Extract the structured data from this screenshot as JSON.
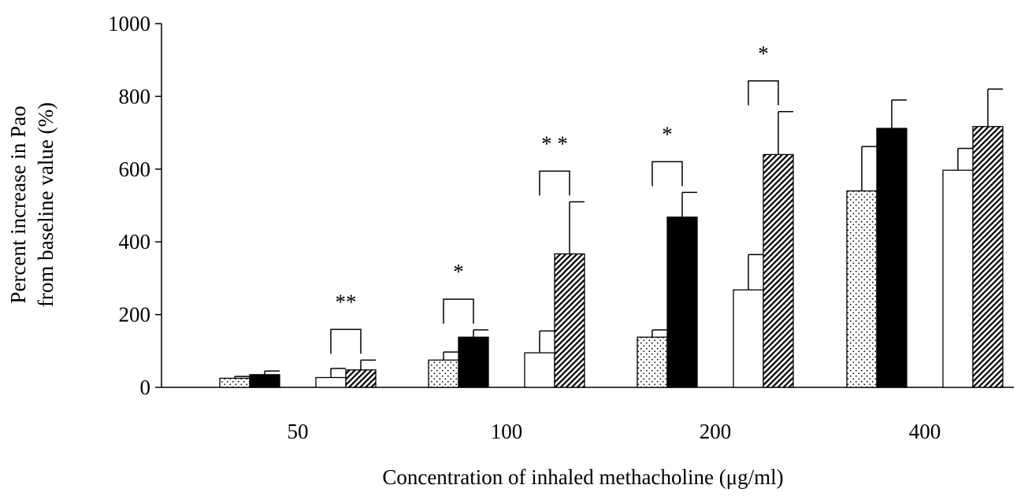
{
  "chart_data": {
    "type": "bar",
    "xlabel": "Concentration of inhaled methacholine (μg/ml)",
    "ylabel_lines": [
      "Percent increase in Pao",
      "from baseline value (%)"
    ],
    "ylim": [
      0,
      1000
    ],
    "yticks": [
      0,
      200,
      400,
      600,
      800,
      1000
    ],
    "grid": false,
    "legend": "none",
    "categories": [
      "50",
      "100",
      "200",
      "400"
    ],
    "series": [
      {
        "pattern": "dotted",
        "values": [
          25,
          75,
          138,
          540
        ],
        "errors": [
          5,
          22,
          20,
          122
        ]
      },
      {
        "pattern": "solid-black",
        "values": [
          35,
          138,
          468,
          712
        ],
        "errors": [
          10,
          20,
          68,
          78
        ]
      },
      {
        "pattern": "white",
        "values": [
          27,
          95,
          268,
          597
        ],
        "errors": [
          25,
          60,
          97,
          60
        ]
      },
      {
        "pattern": "hatched",
        "values": [
          48,
          367,
          640,
          717
        ],
        "errors": [
          27,
          143,
          118,
          103
        ]
      }
    ],
    "significance": [
      {
        "category": "50",
        "pair": [
          2,
          3
        ],
        "label": "**"
      },
      {
        "category": "100",
        "pair": [
          0,
          1
        ],
        "label": "*"
      },
      {
        "category": "100",
        "pair": [
          2,
          3
        ],
        "label": "* *"
      },
      {
        "category": "200",
        "pair": [
          0,
          1
        ],
        "label": "*"
      },
      {
        "category": "200",
        "pair": [
          2,
          3
        ],
        "label": "*"
      }
    ]
  }
}
